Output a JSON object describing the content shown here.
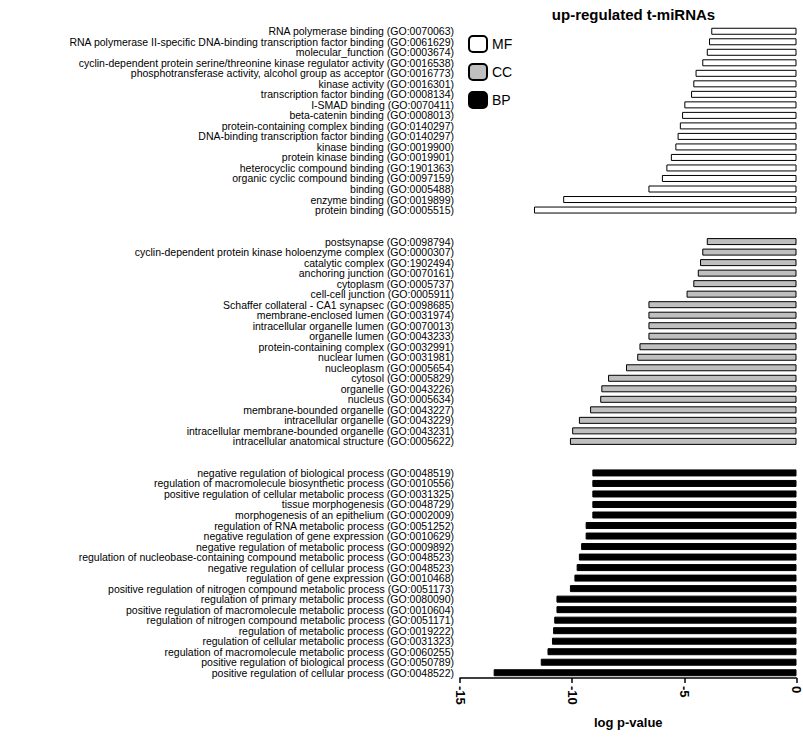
{
  "chart_data": {
    "type": "bar",
    "title": "up-regulated t-miRNAs",
    "orientation": "horizontal",
    "xlabel": "log p-value",
    "xlim": [
      -15,
      0
    ],
    "xticks": [
      -15,
      -10,
      -5,
      0
    ],
    "grid": false,
    "legend": "upper left",
    "categories": [
      "RNA polymerase binding (GO:0070063)",
      "RNA polymerase II-specific DNA-binding transcription factor binding (GO:0061629)",
      "molecular_function (GO:0003674)",
      "cyclin-dependent protein serine/threonine kinase regulator activity (GO:0016538)",
      "phosphotransferase activity, alcohol group as acceptor (GO:0016773)",
      "kinase activity (GO:0016301)",
      "transcription factor binding (GO:0008134)",
      "I-SMAD binding (GO:0070411)",
      "beta-catenin binding (GO:0008013)",
      "protein-containing complex binding (GO:0140297)",
      "DNA-binding transcription factor binding (GO:0140297)",
      "kinase binding (GO:0019900)",
      "protein kinase binding (GO:0019901)",
      "heterocyclic compound binding (GO:1901363)",
      "organic cyclic compound binding (GO:0097159)",
      "binding (GO:0005488)",
      "enzyme binding (GO:0019899)",
      "protein binding (GO:0005515)",
      null,
      null,
      "postsynapse (GO:0098794)",
      "cyclin-dependent protein kinase holoenzyme complex (GO:0000307)",
      "catalytic complex (GO:1902494)",
      "anchoring junction (GO:0070161)",
      "cytoplasm (GO:0005737)",
      "cell-cell junction (GO:0005911)",
      "Schaffer collateral - CA1 synapsec (GO:0098685)",
      "membrane-enclosed lumen (GO:0031974)",
      "intracellular organelle lumen (GO:0070013)",
      "organelle lumen (GO:0043233)",
      "protein-containing complex (GO:0032991)",
      "nuclear lumen (GO:0031981)",
      "nucleoplasm (GO:0005654)",
      "cytosol (GO:0005829)",
      "organelle (GO:0043226)",
      "nucleus (GO:0005634)",
      "membrane-bounded organelle (GO:0043227)",
      "intracellular organelle (GO:0043229)",
      "intracellular membrane-bounded organelle (GO:0043231)",
      "intracellular anatomical structure (GO:0005622)",
      null,
      null,
      "negative regulation of biological process (GO:0048519)",
      "regulation of macromolecule biosynthetic process (GO:0010556)",
      "positive regulation of cellular metabolic process (GO:0031325)",
      "tissue morphogenesis (GO:0048729)",
      "morphogenesis of an epithelium (GO:0002009)",
      "regulation of RNA metabolic process (GO:0051252)",
      "negative regulation of gene expression (GO:0010629)",
      "negative regulation of metabolic process (GO:0009892)",
      "regulation of nucleobase-containing compound metabolic process (GO:0048523)",
      "negative regulation of cellular process (GO:0048523)",
      "regulation of gene expression (GO:0010468)",
      "positive regulation of nitrogen compound metabolic process (GO:0051173)",
      "regulation of primary metabolic process (GO:0080090)",
      "positive regulation of macromolecule metabolic process (GO:0010604)",
      "regulation of nitrogen compound metabolic process (GO:0051171)",
      "regulation of metabolic process (GO:0019222)",
      "regulation of cellular metabolic process (GO:0031323)",
      "regulation of macromolecule metabolic process (GO:0060255)",
      "positive regulation of biological process (GO:0050789)",
      "positive regulation of cellular process (GO:0048522)"
    ],
    "series": [
      {
        "name": "MF",
        "color": "#ffffff",
        "values": [
          -3.8,
          -3.9,
          -4.0,
          -4.2,
          -4.5,
          -4.6,
          -4.7,
          -5.0,
          -5.1,
          -5.2,
          -5.3,
          -5.4,
          -5.6,
          -5.8,
          -6.0,
          -6.6,
          -10.4,
          -11.7,
          null,
          null,
          null,
          null,
          null,
          null,
          null,
          null,
          null,
          null,
          null,
          null,
          null,
          null,
          null,
          null,
          null,
          null,
          null,
          null,
          null,
          null,
          null,
          null,
          null,
          null,
          null,
          null,
          null,
          null,
          null,
          null,
          null,
          null,
          null,
          null,
          null,
          null,
          null,
          null,
          null,
          null,
          null,
          null
        ]
      },
      {
        "name": "CC",
        "color": "#bfbfbf",
        "values": [
          null,
          null,
          null,
          null,
          null,
          null,
          null,
          null,
          null,
          null,
          null,
          null,
          null,
          null,
          null,
          null,
          null,
          null,
          null,
          null,
          -4.0,
          -4.2,
          -4.3,
          -4.4,
          -4.6,
          -4.9,
          -6.6,
          -6.6,
          -6.6,
          -6.6,
          -7.0,
          -7.1,
          -7.6,
          -8.4,
          -8.7,
          -8.75,
          -9.2,
          -9.7,
          -10.0,
          -10.1,
          null,
          null,
          null,
          null,
          null,
          null,
          null,
          null,
          null,
          null,
          null,
          null,
          null,
          null,
          null,
          null,
          null,
          null,
          null,
          null,
          null,
          null
        ]
      },
      {
        "name": "BP",
        "color": "#000000",
        "values": [
          null,
          null,
          null,
          null,
          null,
          null,
          null,
          null,
          null,
          null,
          null,
          null,
          null,
          null,
          null,
          null,
          null,
          null,
          null,
          null,
          null,
          null,
          null,
          null,
          null,
          null,
          null,
          null,
          null,
          null,
          null,
          null,
          null,
          null,
          null,
          null,
          null,
          null,
          null,
          null,
          null,
          null,
          -9.1,
          -9.1,
          -9.1,
          -9.1,
          -9.1,
          -9.4,
          -9.4,
          -9.6,
          -9.7,
          -9.8,
          -9.9,
          -10.1,
          -10.7,
          -10.7,
          -10.8,
          -10.85,
          -10.9,
          -11.1,
          -11.4,
          -13.5
        ]
      }
    ]
  }
}
